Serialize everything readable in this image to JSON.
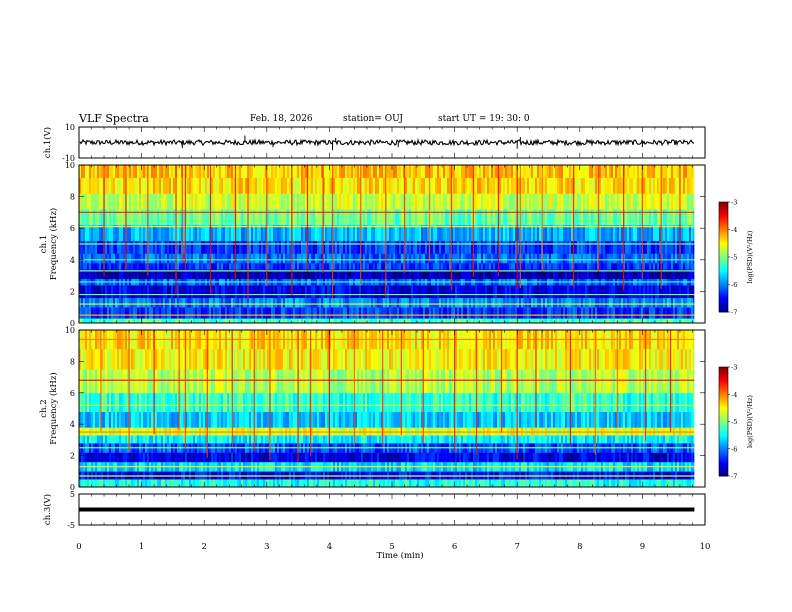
{
  "header": {
    "title": "VLF Spectra",
    "date": "Feb. 18, 2026",
    "station": "station= OUJ",
    "start_ut": "start  UT  =   19: 30: 0"
  },
  "chart_data": [
    {
      "type": "line",
      "name": "ch1-waveform",
      "ylabel": "ch.1(V)",
      "ylim": [
        -10,
        10
      ],
      "yticks": [
        {
          "v": 10,
          "label": "10"
        },
        {
          "v": -10,
          "label": "-10"
        }
      ],
      "xlim": [
        0,
        10
      ],
      "trace_level": 0,
      "spikes": [
        {
          "x": 1.65,
          "y": -3.5
        },
        {
          "x": 2.65,
          "y": 4.5
        },
        {
          "x": 3.1,
          "y": -3
        },
        {
          "x": 4.05,
          "y": -5
        },
        {
          "x": 4.1,
          "y": 3
        },
        {
          "x": 5.1,
          "y": -3
        },
        {
          "x": 7.0,
          "y": -4
        },
        {
          "x": 7.05,
          "y": 3.5
        },
        {
          "x": 9.0,
          "y": -3
        }
      ]
    },
    {
      "type": "heatmap",
      "name": "ch1-spectrogram",
      "ylabel": "ch.1\nFrequency  (kHz)",
      "ylim": [
        0,
        10
      ],
      "xlim": [
        0,
        9.83
      ],
      "yticks": [
        {
          "v": 0,
          "label": "0"
        },
        {
          "v": 2,
          "label": "2"
        },
        {
          "v": 4,
          "label": "4"
        },
        {
          "v": 6,
          "label": "6"
        },
        {
          "v": 8,
          "label": "8"
        },
        {
          "v": 10,
          "label": "10"
        }
      ],
      "colorbar": {
        "label": "log(PSD)(V²/Hz)",
        "range": [
          -7,
          -3
        ],
        "ticks": [
          {
            "v": -3,
            "label": "-3"
          },
          {
            "v": -4,
            "label": "-4"
          },
          {
            "v": -5,
            "label": "-5"
          },
          {
            "v": -6,
            "label": "-6"
          },
          {
            "v": -7,
            "label": "-7"
          }
        ]
      },
      "bands": [
        {
          "f0": 0.0,
          "f1": 0.3,
          "level": -5.2
        },
        {
          "f0": 0.3,
          "f1": 1.0,
          "level": -6.3
        },
        {
          "f0": 1.0,
          "f1": 1.6,
          "level": -6.0
        },
        {
          "f0": 1.6,
          "f1": 2.4,
          "level": -6.6
        },
        {
          "f0": 2.4,
          "f1": 2.8,
          "level": -6.1
        },
        {
          "f0": 2.8,
          "f1": 3.4,
          "level": -6.8
        },
        {
          "f0": 3.4,
          "f1": 3.8,
          "level": -6.3
        },
        {
          "f0": 3.8,
          "f1": 4.4,
          "level": -6.1
        },
        {
          "f0": 4.4,
          "f1": 5.2,
          "level": -6.3
        },
        {
          "f0": 5.2,
          "f1": 6.2,
          "level": -5.8
        },
        {
          "f0": 6.2,
          "f1": 7.2,
          "level": -5.1
        },
        {
          "f0": 7.2,
          "f1": 8.2,
          "level": -4.7
        },
        {
          "f0": 8.2,
          "f1": 9.2,
          "level": -4.4
        },
        {
          "f0": 9.2,
          "f1": 10.0,
          "level": -4.3
        }
      ],
      "lines_khz": [
        {
          "f": 0.5,
          "level": -4.2
        },
        {
          "f": 1.2,
          "level": -4.5
        },
        {
          "f": 1.8,
          "level": -5.0
        },
        {
          "f": 2.6,
          "level": -5.2
        },
        {
          "f": 3.3,
          "level": -5.0
        },
        {
          "f": 4.0,
          "level": -5.2
        },
        {
          "f": 5.0,
          "level": -5.0
        },
        {
          "f": 6.1,
          "level": -4.6
        },
        {
          "f": 7.0,
          "level": -3.7
        }
      ],
      "sferics_min": [
        0.4,
        0.75,
        1.1,
        1.55,
        1.65,
        1.7,
        2.1,
        2.5,
        2.7,
        3.0,
        3.4,
        3.65,
        3.9,
        4.05,
        4.5,
        4.9,
        5.2,
        5.6,
        5.95,
        6.3,
        6.7,
        7.0,
        7.05,
        7.4,
        7.9,
        8.3,
        8.7,
        9.0,
        9.3,
        9.6
      ]
    },
    {
      "type": "heatmap",
      "name": "ch2-spectrogram",
      "ylabel": "ch.2\nFrequency  (kHz)",
      "ylim": [
        0,
        10
      ],
      "xlim": [
        0,
        9.83
      ],
      "yticks": [
        {
          "v": 0,
          "label": "0"
        },
        {
          "v": 2,
          "label": "2"
        },
        {
          "v": 4,
          "label": "4"
        },
        {
          "v": 6,
          "label": "6"
        },
        {
          "v": 8,
          "label": "8"
        },
        {
          "v": 10,
          "label": "10"
        }
      ],
      "colorbar": {
        "label": "log(PSD)(V²/Hz)",
        "range": [
          -7,
          -3
        ],
        "ticks": [
          {
            "v": -3,
            "label": "-3"
          },
          {
            "v": -4,
            "label": "-4"
          },
          {
            "v": -5,
            "label": "-5"
          },
          {
            "v": -6,
            "label": "-6"
          },
          {
            "v": -7,
            "label": "-7"
          }
        ]
      },
      "bands": [
        {
          "f0": 0.0,
          "f1": 0.5,
          "level": -5.4
        },
        {
          "f0": 0.5,
          "f1": 1.0,
          "level": -6.5
        },
        {
          "f0": 1.0,
          "f1": 1.6,
          "level": -5.6
        },
        {
          "f0": 1.6,
          "f1": 2.2,
          "level": -6.6
        },
        {
          "f0": 2.2,
          "f1": 2.8,
          "level": -6.2
        },
        {
          "f0": 2.8,
          "f1": 3.3,
          "level": -5.5
        },
        {
          "f0": 3.3,
          "f1": 3.8,
          "level": -4.6
        },
        {
          "f0": 3.8,
          "f1": 4.8,
          "level": -5.7
        },
        {
          "f0": 4.8,
          "f1": 6.0,
          "level": -5.3
        },
        {
          "f0": 6.0,
          "f1": 7.5,
          "level": -4.8
        },
        {
          "f0": 7.5,
          "f1": 8.8,
          "level": -4.5
        },
        {
          "f0": 8.8,
          "f1": 10.0,
          "level": -4.4
        }
      ],
      "lines_khz": [
        {
          "f": 0.7,
          "level": -4.6
        },
        {
          "f": 1.3,
          "level": -4.4
        },
        {
          "f": 2.5,
          "level": -5.0
        },
        {
          "f": 3.5,
          "level": -4.0
        },
        {
          "f": 5.2,
          "level": -4.8
        },
        {
          "f": 6.8,
          "level": -3.6
        },
        {
          "f": 9.4,
          "level": -4.0
        }
      ],
      "sferics_min": [
        0.35,
        0.8,
        1.2,
        1.6,
        1.7,
        2.05,
        2.45,
        2.8,
        3.05,
        3.5,
        3.7,
        4.0,
        4.4,
        4.85,
        5.15,
        5.5,
        6.0,
        6.35,
        6.75,
        7.0,
        7.3,
        7.85,
        8.25,
        8.6,
        9.05,
        9.45
      ]
    },
    {
      "type": "line",
      "name": "ch3-waveform",
      "ylabel": "ch.3(V)",
      "ylim": [
        -5,
        5
      ],
      "yticks": [
        {
          "v": 5,
          "label": "5"
        },
        {
          "v": -5,
          "label": "-5"
        }
      ],
      "xlim": [
        0,
        9.83
      ],
      "trace_level": 0
    }
  ],
  "xaxis": {
    "label": "Time  (min)",
    "range": [
      0,
      10
    ],
    "ticks": [
      {
        "v": 0,
        "label": "0"
      },
      {
        "v": 1,
        "label": "1"
      },
      {
        "v": 2,
        "label": "2"
      },
      {
        "v": 3,
        "label": "3"
      },
      {
        "v": 4,
        "label": "4"
      },
      {
        "v": 5,
        "label": "5"
      },
      {
        "v": 6,
        "label": "6"
      },
      {
        "v": 7,
        "label": "7"
      },
      {
        "v": 8,
        "label": "8"
      },
      {
        "v": 9,
        "label": "9"
      },
      {
        "v": 10,
        "label": "10"
      }
    ]
  }
}
